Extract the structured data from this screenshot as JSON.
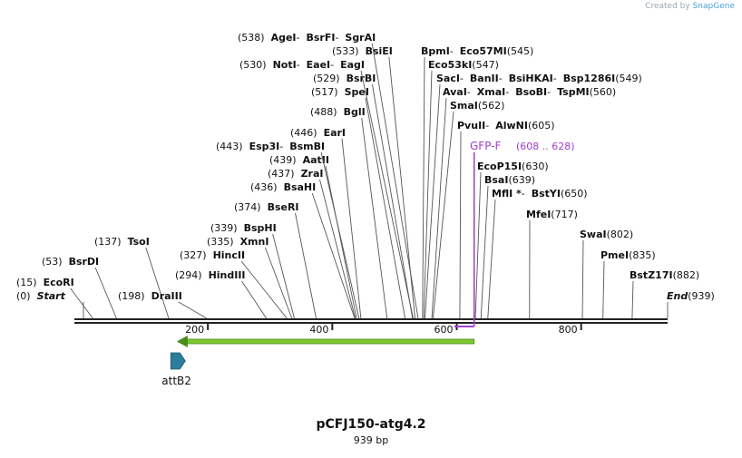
{
  "watermark": {
    "prefix": "Created by",
    "brand": "SnapGene"
  },
  "map": {
    "name": "pCFJ150-atg4.2",
    "length_label": "939 bp",
    "length": 939,
    "ruler_ticks": [
      "200",
      "400",
      "600",
      "800"
    ],
    "ruler_tick_values": [
      200,
      400,
      600,
      800
    ]
  },
  "sites": [
    {
      "pos": "(0)",
      "names": [
        "Start"
      ],
      "special": true,
      "line_at": 0
    },
    {
      "pos": "(15)",
      "names": [
        "EcoRI"
      ],
      "line_at": 15
    },
    {
      "pos": "(53)",
      "names": [
        "BsrDI"
      ],
      "line_at": 53
    },
    {
      "pos": "(137)",
      "names": [
        "TsoI"
      ],
      "line_at": 137
    },
    {
      "pos": "(198)",
      "names": [
        "DraIII"
      ],
      "line_at": 198
    },
    {
      "pos": "(294)",
      "names": [
        "HindIII"
      ],
      "line_at": 294
    },
    {
      "pos": "(327)",
      "names": [
        "HincII"
      ],
      "line_at": 327
    },
    {
      "pos": "(335)",
      "names": [
        "XmnI"
      ],
      "line_at": 335
    },
    {
      "pos": "(339)",
      "names": [
        "BspHI"
      ],
      "line_at": 339
    },
    {
      "pos": "(374)",
      "names": [
        "BseRI"
      ],
      "line_at": 374
    },
    {
      "pos": "(436)",
      "names": [
        "BsaHI"
      ],
      "line_at": 436
    },
    {
      "pos": "(437)",
      "names": [
        "ZraI"
      ],
      "line_at": 437
    },
    {
      "pos": "(439)",
      "names": [
        "AatII"
      ],
      "line_at": 439
    },
    {
      "pos": "(443)",
      "names": [
        "Esp3I",
        "BsmBI"
      ],
      "line_at": 443
    },
    {
      "pos": "(446)",
      "names": [
        "EarI"
      ],
      "line_at": 446
    },
    {
      "pos": "(488)",
      "names": [
        "BglI"
      ],
      "line_at": 488
    },
    {
      "pos": "(517)",
      "names": [
        "SpeI"
      ],
      "line_at": 517
    },
    {
      "pos": "(529)",
      "names": [
        "BsrBI"
      ],
      "line_at": 529
    },
    {
      "pos": "(530)",
      "names": [
        "NotI",
        "EaeI",
        "EagI"
      ],
      "line_at": 530
    },
    {
      "pos": "(533)",
      "names": [
        "BsiEI"
      ],
      "line_at": 533
    },
    {
      "pos": "(538)",
      "names": [
        "AgeI",
        "BsrFI",
        "SgrAI"
      ],
      "line_at": 538
    },
    {
      "pos": "(545)",
      "names": [
        "BpmI",
        "Eco57MI"
      ],
      "line_at": 545
    },
    {
      "pos": "(547)",
      "names": [
        "Eco53kI"
      ],
      "line_at": 547
    },
    {
      "pos": "(549)",
      "names": [
        "SacI",
        "BanII",
        "BsiHKAI",
        "Bsp1286I"
      ],
      "line_at": 549
    },
    {
      "pos": "(560)",
      "names": [
        "AvaI",
        "XmaI",
        "BsoBI",
        "TspMI"
      ],
      "line_at": 560
    },
    {
      "pos": "(562)",
      "names": [
        "SmaI"
      ],
      "line_at": 562
    },
    {
      "pos": "(605)",
      "names": [
        "PvuII",
        "AlwNI"
      ],
      "line_at": 605
    },
    {
      "pos": "(630)",
      "names": [
        "EcoP15I"
      ],
      "line_at": 630
    },
    {
      "pos": "(639)",
      "names": [
        "BsaI"
      ],
      "line_at": 639
    },
    {
      "pos": "(650)",
      "names": [
        "MflI *",
        "BstYI"
      ],
      "line_at": 650
    },
    {
      "pos": "(717)",
      "names": [
        "MfeI"
      ],
      "line_at": 717
    },
    {
      "pos": "(802)",
      "names": [
        "SwaI"
      ],
      "line_at": 802
    },
    {
      "pos": "(835)",
      "names": [
        "PmeI"
      ],
      "line_at": 835
    },
    {
      "pos": "(882)",
      "names": [
        "BstZ17I"
      ],
      "line_at": 882
    },
    {
      "pos": "(939)",
      "names": [
        "End"
      ],
      "special": true,
      "line_at": 939
    }
  ],
  "primer": {
    "name": "GFP-F",
    "range": "(608 .. 628)",
    "start": 608,
    "end": 628,
    "color": "#a040d0"
  },
  "features": [
    {
      "name": "green-arrow",
      "start": 150,
      "end": 628,
      "direction": "reverse",
      "color": "#7ec832"
    },
    {
      "name": "attB2",
      "label": "attB2",
      "start": 120,
      "end": 140,
      "direction": "forward",
      "color": "#2b7d9b"
    }
  ],
  "colors": {
    "line": "#555555",
    "backbone": "#222222",
    "text": "#111111"
  }
}
